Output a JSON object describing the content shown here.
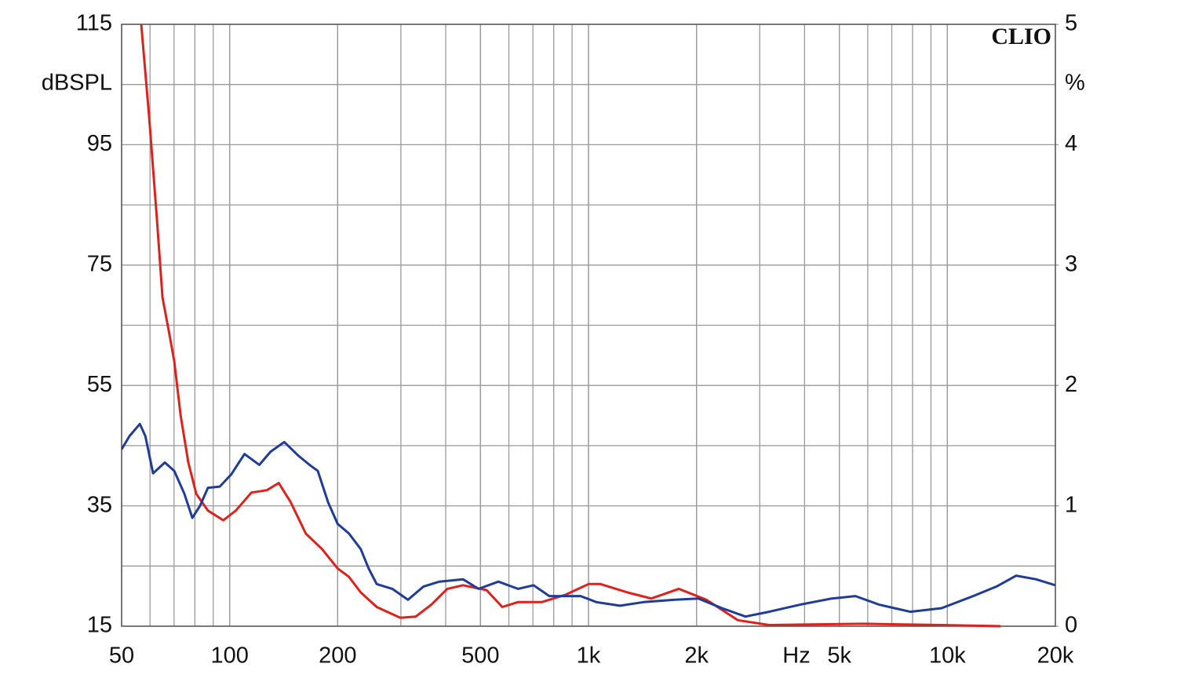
{
  "chart_data": {
    "type": "line",
    "annotation": "CLIO",
    "ylabel": "dBSPL",
    "y2label": "%",
    "xlabel": "Hz",
    "log_x": true,
    "grid": true,
    "xlim": [
      50,
      20000
    ],
    "xticks": [
      50,
      100,
      200,
      500,
      {
        "value": 1000,
        "label": "1k"
      },
      {
        "value": 2000,
        "label": "2k"
      },
      {
        "value": 5000,
        "label": "5k"
      },
      {
        "value": 10000,
        "label": "10k"
      },
      {
        "value": 20000,
        "label": "20k"
      }
    ],
    "ylim": [
      15,
      115
    ],
    "yticks": [
      15,
      35,
      55,
      75,
      95,
      115
    ],
    "y2lim": [
      0,
      5
    ],
    "y2ticks": [
      0,
      1,
      2,
      3,
      4,
      5
    ],
    "series": [
      {
        "color": "#e0201b",
        "axis": "y2",
        "x": [
          56.7,
          59.7,
          62.7,
          65,
          67.6,
          70.1,
          73,
          76.7,
          80.7,
          87,
          96,
          104,
          115,
          127,
          137,
          148,
          163,
          181,
          200,
          215,
          232,
          257,
          299,
          330,
          365,
          404,
          447,
          520,
          575,
          636,
          740,
          861,
          1000,
          1080,
          1285,
          1496,
          1785,
          2130,
          2605,
          3185,
          5820,
          9640,
          14060
        ],
        "values": [
          5.0,
          4.22,
          3.38,
          2.73,
          2.46,
          2.2,
          1.75,
          1.36,
          1.1,
          0.96,
          0.88,
          0.96,
          1.11,
          1.13,
          1.19,
          1.03,
          0.77,
          0.64,
          0.48,
          0.41,
          0.28,
          0.16,
          0.07,
          0.08,
          0.18,
          0.31,
          0.34,
          0.3,
          0.16,
          0.2,
          0.2,
          0.26,
          0.35,
          0.35,
          0.28,
          0.23,
          0.31,
          0.22,
          0.05,
          0.01,
          0.02,
          0.01,
          0.0
        ]
      },
      {
        "color": "#1f3c99",
        "axis": "y2",
        "x": [
          50,
          52.6,
          56.2,
          58.2,
          61.2,
          66,
          70.1,
          74.8,
          78.7,
          82.7,
          87,
          93.8,
          101,
          110,
          121,
          130,
          142,
          155,
          167,
          176,
          188,
          200,
          215,
          232,
          244,
          257,
          284,
          314,
          347,
          384,
          447,
          494,
          561,
          636,
          703,
          778,
          861,
          951,
          1052,
          1224,
          1423,
          1741,
          2024,
          2355,
          2737,
          3185,
          3898,
          4765,
          5546,
          6442,
          7880,
          9640,
          11800,
          13710,
          15560,
          17660,
          20000
        ],
        "values": [
          1.47,
          1.58,
          1.68,
          1.58,
          1.27,
          1.36,
          1.29,
          1.1,
          0.9,
          1.0,
          1.15,
          1.16,
          1.26,
          1.43,
          1.34,
          1.45,
          1.53,
          1.42,
          1.34,
          1.29,
          1.03,
          0.85,
          0.77,
          0.64,
          0.48,
          0.35,
          0.31,
          0.22,
          0.33,
          0.37,
          0.39,
          0.31,
          0.37,
          0.31,
          0.34,
          0.25,
          0.25,
          0.25,
          0.2,
          0.17,
          0.2,
          0.22,
          0.23,
          0.15,
          0.08,
          0.12,
          0.18,
          0.23,
          0.25,
          0.18,
          0.12,
          0.15,
          0.25,
          0.33,
          0.42,
          0.39,
          0.34
        ]
      }
    ]
  }
}
